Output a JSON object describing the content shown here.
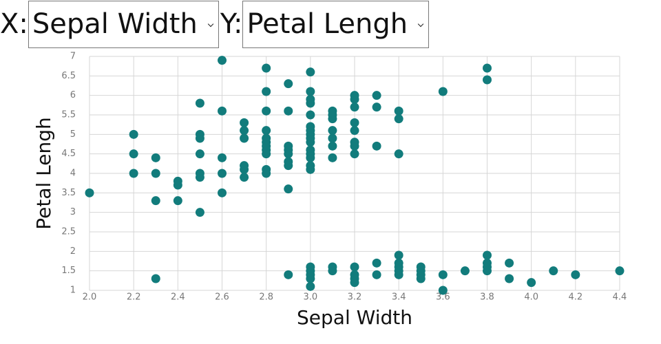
{
  "controls": {
    "x_label": "X:",
    "x_selected": "Sepal Width",
    "y_label": "Y:",
    "y_selected": "Petal Lengh"
  },
  "chart_data": {
    "type": "scatter",
    "x_label": "Sepal Width",
    "y_label": "Petal Lengh",
    "color": "#127c7c",
    "grid": true,
    "xlim": [
      2.0,
      4.4
    ],
    "ylim": [
      1,
      7
    ],
    "xticks": [
      {
        "value": 2.0,
        "label": "2.0"
      },
      2.2,
      2.4,
      2.6,
      2.8,
      {
        "value": 3.0,
        "label": "3.0"
      },
      3.2,
      3.4,
      3.6,
      3.8,
      {
        "value": 4.0,
        "label": "4.0"
      },
      4.2,
      4.4
    ],
    "yticks": [
      1,
      1.5,
      2,
      2.5,
      3,
      3.5,
      4,
      4.5,
      5,
      5.5,
      6,
      6.5,
      7
    ],
    "x": [
      2.0,
      2.2,
      2.2,
      2.2,
      2.3,
      2.3,
      2.3,
      2.3,
      2.4,
      2.4,
      2.4,
      2.5,
      2.5,
      2.5,
      2.5,
      2.5,
      2.5,
      2.5,
      2.6,
      2.6,
      2.6,
      2.6,
      2.6,
      2.7,
      2.7,
      2.7,
      2.7,
      2.7,
      2.7,
      2.8,
      2.8,
      2.8,
      2.8,
      2.8,
      2.8,
      2.8,
      2.8,
      2.8,
      2.8,
      2.8,
      2.9,
      2.9,
      2.9,
      2.9,
      2.9,
      2.9,
      2.9,
      2.9,
      2.9,
      3.0,
      3.0,
      3.0,
      3.0,
      3.0,
      3.0,
      3.0,
      3.0,
      3.0,
      3.0,
      3.0,
      3.0,
      3.0,
      3.0,
      3.0,
      3.0,
      3.0,
      3.0,
      3.0,
      3.0,
      3.1,
      3.1,
      3.1,
      3.1,
      3.1,
      3.1,
      3.1,
      3.1,
      3.1,
      3.2,
      3.2,
      3.2,
      3.2,
      3.2,
      3.2,
      3.2,
      3.2,
      3.2,
      3.2,
      3.2,
      3.2,
      3.3,
      3.3,
      3.3,
      3.3,
      3.3,
      3.4,
      3.4,
      3.4,
      3.4,
      3.4,
      3.4,
      3.4,
      3.4,
      3.5,
      3.5,
      3.5,
      3.5,
      3.6,
      3.6,
      3.6,
      3.7,
      3.8,
      3.8,
      3.8,
      3.8,
      3.8,
      3.8,
      3.9,
      3.9,
      4.0,
      4.1,
      4.2,
      4.4
    ],
    "values": [
      3.5,
      5.0,
      4.5,
      4.0,
      4.4,
      4.0,
      3.3,
      1.3,
      3.8,
      3.7,
      3.3,
      5.8,
      5.0,
      4.9,
      4.5,
      4.0,
      3.9,
      3.0,
      6.9,
      5.6,
      4.4,
      4.0,
      3.5,
      5.3,
      5.1,
      4.9,
      4.2,
      4.1,
      3.9,
      6.7,
      6.1,
      5.6,
      5.1,
      4.9,
      4.8,
      4.7,
      4.6,
      4.5,
      4.1,
      4.0,
      6.3,
      5.6,
      4.7,
      4.6,
      4.5,
      4.3,
      4.2,
      3.6,
      1.4,
      6.6,
      6.1,
      5.9,
      5.8,
      5.5,
      5.2,
      5.1,
      5.0,
      4.9,
      4.8,
      4.6,
      4.5,
      4.4,
      4.2,
      4.1,
      1.6,
      1.5,
      1.4,
      1.3,
      1.1,
      5.6,
      5.5,
      5.4,
      5.1,
      4.9,
      4.7,
      4.4,
      1.6,
      1.5,
      6.0,
      5.9,
      5.7,
      5.3,
      5.1,
      4.8,
      4.7,
      4.5,
      1.6,
      1.4,
      1.3,
      1.2,
      6.0,
      5.7,
      4.7,
      1.7,
      1.4,
      5.6,
      5.4,
      4.5,
      1.9,
      1.7,
      1.6,
      1.5,
      1.4,
      1.6,
      1.5,
      1.4,
      1.3,
      6.1,
      1.4,
      1.0,
      1.5,
      6.7,
      6.4,
      1.9,
      1.7,
      1.6,
      1.5,
      1.7,
      1.3,
      1.2,
      1.5,
      1.4,
      1.5
    ]
  }
}
